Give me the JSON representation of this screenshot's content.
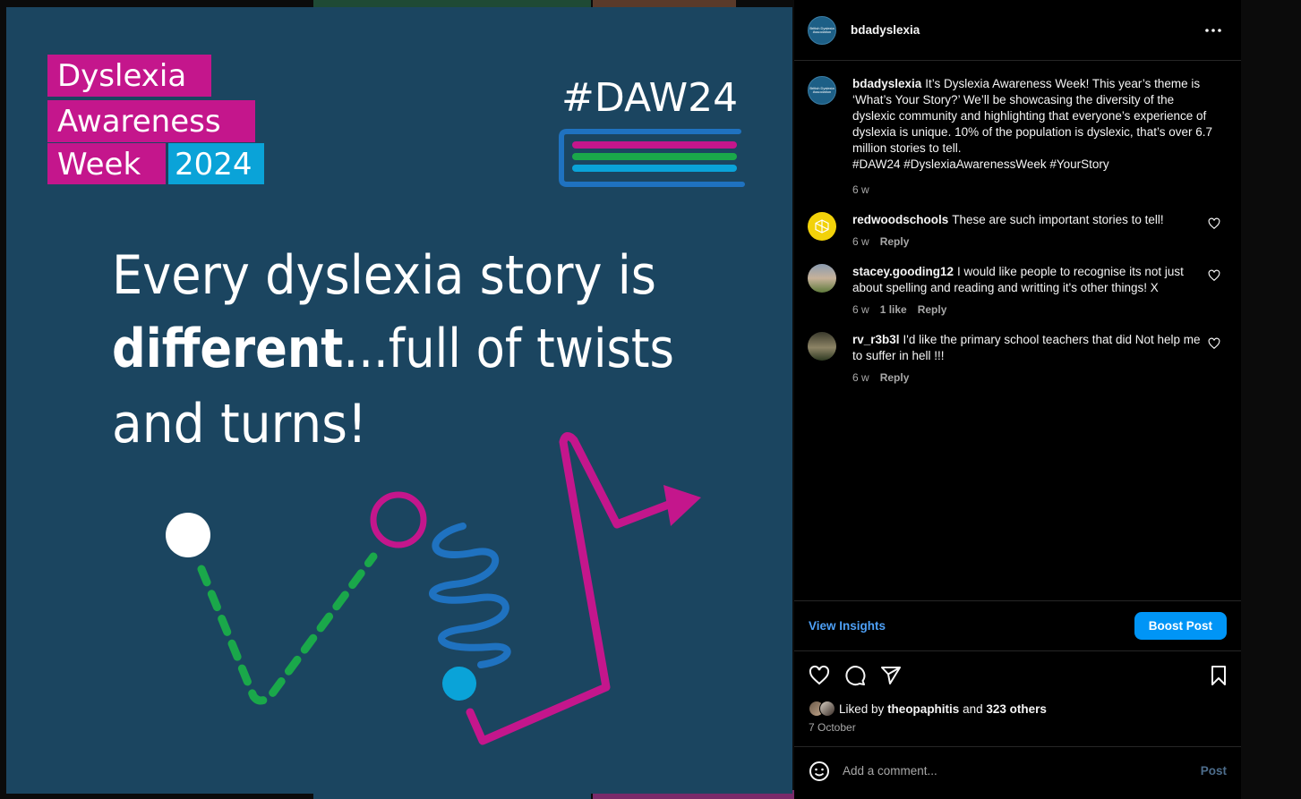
{
  "colors": {
    "image_bg": "#1b4560",
    "magenta": "#c4168c",
    "cyan": "#0aa3d8",
    "green": "#1aa84a",
    "blue": "#1f72c0",
    "accent": "#0095f6"
  },
  "image": {
    "title_line1": "Dyslexia",
    "title_line2": "Awareness",
    "title_line3": "Week",
    "year": "2024",
    "hashtag": "#DAW24",
    "headline_line1": "Every dyslexia story is",
    "headline_bold": "different",
    "headline_rest": "...full of twists",
    "headline_line3": "and turns!"
  },
  "header": {
    "username": "bdadyslexia",
    "avatar_text": "British Dyslexia Association"
  },
  "caption": {
    "username": "bdadyslexia",
    "text": "It’s Dyslexia Awareness Week! This year’s theme is ‘What’s Your Story?’ We’ll be showcasing the diversity of the dyslexic community and highlighting that everyone’s experience of dyslexia is unique. 10% of the population is dyslexic, that’s over 6.7 million stories to tell.",
    "hashtags": "#DAW24 #DyslexiaAwarenessWeek #YourStory",
    "time": "6 w"
  },
  "comments": [
    {
      "username": "redwoodschools",
      "text": "These are such important stories to tell!",
      "time": "6 w",
      "likes": "",
      "reply": "Reply"
    },
    {
      "username": "stacey.gooding12",
      "text": "I would like people to recognise its not just about spelling and reading and writting it's other things! X",
      "time": "6 w",
      "likes": "1 like",
      "reply": "Reply"
    },
    {
      "username": "rv_r3b3l",
      "text": "I'd like the primary school teachers that did Not help me to suffer in hell !!!",
      "time": "6 w",
      "likes": "",
      "reply": "Reply"
    }
  ],
  "insights": {
    "view_label": "View Insights",
    "boost_label": "Boost Post"
  },
  "likes": {
    "prefix": "Liked by",
    "user": "theopaphitis",
    "joiner": "and",
    "others": "323 others"
  },
  "date": "7 October",
  "add_comment": {
    "placeholder": "Add a comment...",
    "post_label": "Post"
  },
  "icons": [
    "more-icon",
    "heart-icon",
    "comment-icon",
    "share-icon",
    "bookmark-icon",
    "emoji-icon"
  ]
}
